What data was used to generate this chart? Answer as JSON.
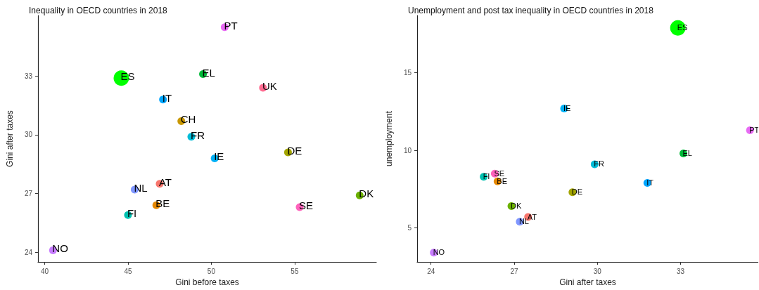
{
  "chart_data": [
    {
      "type": "bubble",
      "title": "Inequality in OECD countries in 2018",
      "xlabel": "Gini before taxes",
      "ylabel": "Gini after taxes",
      "xlim": [
        39.6,
        59.9
      ],
      "xticks": [
        40,
        45,
        50,
        55
      ],
      "ylim": [
        23.5,
        36.1
      ],
      "yticks": [
        24,
        27,
        30,
        33
      ],
      "grid": false,
      "legend": false,
      "series": [
        {
          "name": "AT",
          "color": "#f8766d",
          "x": [
            46.9
          ],
          "values": [
            27.5
          ],
          "sizes": [
            0.25
          ]
        },
        {
          "name": "BE",
          "color": "#e58700",
          "x": [
            46.7
          ],
          "values": [
            26.4
          ],
          "sizes": [
            0.25
          ]
        },
        {
          "name": "CH",
          "color": "#c99800",
          "x": [
            48.2
          ],
          "values": [
            30.7
          ],
          "sizes": [
            0.25
          ]
        },
        {
          "name": "DE",
          "color": "#a3a500",
          "x": [
            54.6
          ],
          "values": [
            29.1
          ],
          "sizes": [
            0.25
          ]
        },
        {
          "name": "DK",
          "color": "#6bb100",
          "x": [
            58.9
          ],
          "values": [
            26.9
          ],
          "sizes": [
            0.25
          ]
        },
        {
          "name": "EL",
          "color": "#00ba38",
          "x": [
            49.5
          ],
          "values": [
            33.1
          ],
          "sizes": [
            0.25
          ]
        },
        {
          "name": "ES",
          "color": "#00ff00",
          "x": [
            44.6
          ],
          "values": [
            32.9
          ],
          "sizes": [
            1
          ]
        },
        {
          "name": "FI",
          "color": "#00c0af",
          "x": [
            45.0
          ],
          "values": [
            25.9
          ],
          "sizes": [
            0.25
          ]
        },
        {
          "name": "FR",
          "color": "#00bcd8",
          "x": [
            48.8
          ],
          "values": [
            29.9
          ],
          "sizes": [
            0.25
          ]
        },
        {
          "name": "IE",
          "color": "#00b0f6",
          "x": [
            50.2
          ],
          "values": [
            28.8
          ],
          "sizes": [
            0.25
          ]
        },
        {
          "name": "IT",
          "color": "#00a5ff",
          "x": [
            47.1
          ],
          "values": [
            31.8
          ],
          "sizes": [
            0.25
          ]
        },
        {
          "name": "NL",
          "color": "#7f96ff",
          "x": [
            45.4
          ],
          "values": [
            27.2
          ],
          "sizes": [
            0.25
          ]
        },
        {
          "name": "NO",
          "color": "#c77cff",
          "x": [
            40.5
          ],
          "values": [
            24.1
          ],
          "sizes": [
            0.25
          ]
        },
        {
          "name": "PT",
          "color": "#e76bf3",
          "x": [
            50.8
          ],
          "values": [
            35.5
          ],
          "sizes": [
            0.25
          ]
        },
        {
          "name": "SE",
          "color": "#ff62bc",
          "x": [
            55.3
          ],
          "values": [
            26.3
          ],
          "sizes": [
            0.25
          ]
        },
        {
          "name": "UK",
          "color": "#ff6c91",
          "x": [
            53.1
          ],
          "values": [
            32.4
          ],
          "sizes": [
            0.25
          ]
        }
      ]
    },
    {
      "type": "bubble",
      "title": "Unemployment and post tax inequality in OECD countries in 2018",
      "xlabel": "Gini after taxes",
      "ylabel": "unemployment",
      "xlim": [
        23.5,
        35.8
      ],
      "xticks": [
        24,
        27,
        30,
        33
      ],
      "ylim": [
        2.8,
        18.7
      ],
      "yticks": [
        5,
        10,
        15
      ],
      "grid": false,
      "legend": false,
      "series": [
        {
          "name": "AT",
          "color": "#f8766d",
          "x": [
            27.5
          ],
          "values": [
            5.7
          ],
          "sizes": [
            0.25
          ]
        },
        {
          "name": "BE",
          "color": "#e58700",
          "x": [
            26.4
          ],
          "values": [
            8.0
          ],
          "sizes": [
            0.25
          ]
        },
        {
          "name": "DE",
          "color": "#a3a500",
          "x": [
            29.1
          ],
          "values": [
            7.3
          ],
          "sizes": [
            0.25
          ]
        },
        {
          "name": "DK",
          "color": "#6bb100",
          "x": [
            26.9
          ],
          "values": [
            6.4
          ],
          "sizes": [
            0.25
          ]
        },
        {
          "name": "EL",
          "color": "#00ba38",
          "x": [
            33.1
          ],
          "values": [
            9.8
          ],
          "sizes": [
            0.25
          ]
        },
        {
          "name": "ES",
          "color": "#00ff00",
          "x": [
            32.9
          ],
          "values": [
            17.9
          ],
          "sizes": [
            1
          ]
        },
        {
          "name": "FI",
          "color": "#00c0af",
          "x": [
            25.9
          ],
          "values": [
            8.3
          ],
          "sizes": [
            0.25
          ]
        },
        {
          "name": "FR",
          "color": "#00bcd8",
          "x": [
            29.9
          ],
          "values": [
            9.1
          ],
          "sizes": [
            0.25
          ]
        },
        {
          "name": "IE",
          "color": "#00b0f6",
          "x": [
            28.8
          ],
          "values": [
            12.7
          ],
          "sizes": [
            0.25
          ]
        },
        {
          "name": "IT",
          "color": "#00a5ff",
          "x": [
            31.8
          ],
          "values": [
            7.9
          ],
          "sizes": [
            0.25
          ]
        },
        {
          "name": "NL",
          "color": "#7f96ff",
          "x": [
            27.2
          ],
          "values": [
            5.4
          ],
          "sizes": [
            0.25
          ]
        },
        {
          "name": "NO",
          "color": "#c77cff",
          "x": [
            24.1
          ],
          "values": [
            3.4
          ],
          "sizes": [
            0.25
          ]
        },
        {
          "name": "PT",
          "color": "#e76bf3",
          "x": [
            35.5
          ],
          "values": [
            11.3
          ],
          "sizes": [
            0.25
          ]
        },
        {
          "name": "SE",
          "color": "#ff62bc",
          "x": [
            26.3
          ],
          "values": [
            8.5
          ],
          "sizes": [
            0.25
          ]
        }
      ]
    }
  ]
}
